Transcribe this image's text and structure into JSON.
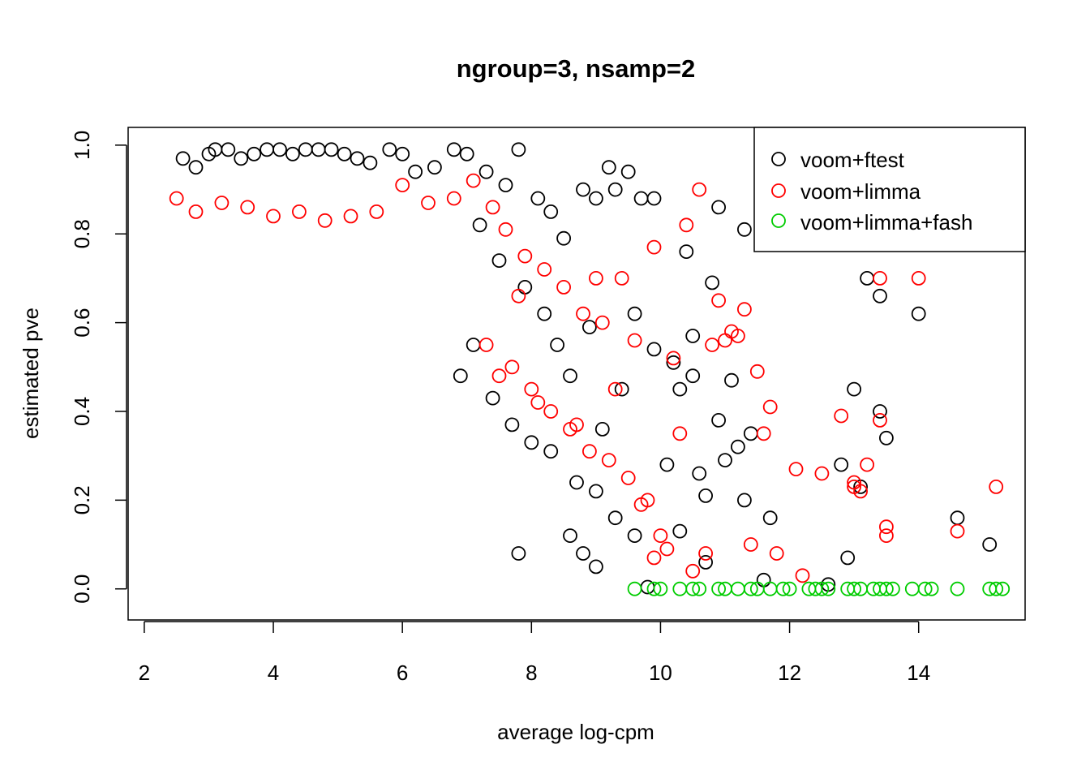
{
  "chart_data": {
    "type": "scatter",
    "title": "ngroup=3, nsamp=2",
    "xlabel": "average log-cpm",
    "ylabel": "estimated pve",
    "xlim": [
      1.75,
      15.65
    ],
    "ylim": [
      -0.07,
      1.04
    ],
    "xticks": [
      2,
      4,
      6,
      8,
      10,
      12,
      14
    ],
    "yticks": [
      0.0,
      0.2,
      0.4,
      0.6,
      0.8,
      1.0
    ],
    "xtick_labels": [
      "2",
      "4",
      "6",
      "8",
      "10",
      "12",
      "14"
    ],
    "ytick_labels": [
      "0.0",
      "0.2",
      "0.4",
      "0.6",
      "0.8",
      "1.0"
    ],
    "grid": false,
    "legend": "top-right",
    "marker": "open-circle",
    "series": [
      {
        "name": "voom+ftest",
        "color": "#000000",
        "x": [
          2.6,
          2.8,
          3.0,
          3.1,
          3.3,
          3.5,
          3.7,
          3.9,
          4.1,
          4.3,
          4.5,
          4.7,
          4.9,
          5.1,
          5.3,
          5.5,
          5.8,
          6.0,
          6.2,
          6.5,
          6.8,
          7.0,
          7.3,
          7.6,
          7.8,
          8.1,
          8.3,
          8.5,
          8.8,
          9.0,
          9.2,
          9.3,
          9.5,
          9.7,
          9.9,
          10.2,
          10.4,
          10.5,
          10.6,
          10.9,
          11.1,
          11.3,
          7.2,
          7.5,
          7.9,
          8.2,
          8.4,
          8.6,
          8.9,
          9.1,
          9.4,
          9.6,
          9.9,
          10.1,
          10.3,
          10.5,
          10.7,
          10.9,
          11.0,
          11.2,
          11.4,
          11.7,
          12.8,
          13.0,
          13.2,
          13.4,
          13.5,
          14.0,
          14.6,
          15.1,
          7.4,
          7.7,
          8.0,
          8.3,
          8.7,
          9.0,
          9.3,
          9.6,
          10.3,
          10.7,
          11.3,
          11.6,
          12.6,
          12.9,
          13.1,
          13.4,
          9.0,
          8.6,
          7.8,
          10.8,
          7.1,
          6.9,
          8.8,
          9.8
        ],
        "y": [
          0.97,
          0.95,
          0.98,
          0.99,
          0.99,
          0.97,
          0.98,
          0.99,
          0.99,
          0.98,
          0.99,
          0.99,
          0.99,
          0.98,
          0.97,
          0.96,
          0.99,
          0.98,
          0.94,
          0.95,
          0.99,
          0.98,
          0.94,
          0.91,
          0.99,
          0.88,
          0.85,
          0.79,
          0.9,
          0.88,
          0.95,
          0.9,
          0.94,
          0.88,
          0.88,
          0.51,
          0.76,
          0.57,
          0.26,
          0.86,
          0.47,
          0.81,
          0.82,
          0.74,
          0.68,
          0.62,
          0.55,
          0.48,
          0.59,
          0.36,
          0.45,
          0.62,
          0.54,
          0.28,
          0.13,
          0.48,
          0.06,
          0.38,
          0.29,
          0.32,
          0.35,
          0.16,
          0.28,
          0.45,
          0.7,
          0.66,
          0.34,
          0.62,
          0.16,
          0.1,
          0.43,
          0.37,
          0.33,
          0.31,
          0.24,
          0.22,
          0.16,
          0.12,
          0.45,
          0.21,
          0.2,
          0.02,
          0.01,
          0.07,
          0.23,
          0.4,
          0.05,
          0.12,
          0.08,
          0.69,
          0.55,
          0.48,
          0.08,
          0.004
        ]
      },
      {
        "name": "voom+limma",
        "color": "#ff0000",
        "x": [
          2.5,
          2.8,
          3.2,
          3.6,
          4.0,
          4.4,
          4.8,
          5.2,
          5.6,
          6.0,
          6.4,
          6.8,
          7.1,
          7.4,
          7.6,
          7.9,
          8.2,
          8.5,
          8.8,
          9.1,
          9.4,
          9.6,
          9.9,
          10.2,
          10.4,
          10.6,
          10.9,
          11.1,
          11.3,
          11.5,
          11.7,
          11.8,
          12.1,
          12.5,
          12.8,
          13.0,
          13.2,
          13.4,
          13.5,
          14.0,
          14.6,
          15.2,
          7.3,
          7.7,
          8.0,
          8.3,
          8.6,
          8.9,
          9.2,
          9.5,
          9.8,
          10.0,
          10.3,
          10.5,
          10.8,
          11.0,
          11.2,
          11.6,
          12.2,
          13.1,
          13.4,
          9.7,
          9.9,
          7.5,
          8.1,
          8.7,
          9.3,
          10.1,
          10.7,
          11.4,
          13.0,
          13.5,
          9.0,
          7.8
        ],
        "y": [
          0.88,
          0.85,
          0.87,
          0.86,
          0.84,
          0.85,
          0.83,
          0.84,
          0.85,
          0.91,
          0.87,
          0.88,
          0.92,
          0.86,
          0.81,
          0.75,
          0.72,
          0.68,
          0.62,
          0.6,
          0.7,
          0.56,
          0.77,
          0.52,
          0.82,
          0.9,
          0.65,
          0.58,
          0.63,
          0.49,
          0.41,
          0.08,
          0.27,
          0.26,
          0.39,
          0.24,
          0.28,
          0.7,
          0.14,
          0.7,
          0.13,
          0.23,
          0.55,
          0.5,
          0.45,
          0.4,
          0.36,
          0.31,
          0.29,
          0.25,
          0.2,
          0.12,
          0.35,
          0.04,
          0.55,
          0.56,
          0.57,
          0.35,
          0.03,
          0.22,
          0.38,
          0.19,
          0.07,
          0.48,
          0.42,
          0.37,
          0.45,
          0.09,
          0.08,
          0.1,
          0.23,
          0.12,
          0.7,
          0.66
        ]
      },
      {
        "name": "voom+limma+fash",
        "color": "#00cc00",
        "x": [
          9.9,
          10.3,
          10.6,
          10.9,
          11.2,
          11.5,
          11.7,
          12.0,
          12.3,
          12.5,
          12.6,
          12.9,
          13.1,
          13.3,
          13.4,
          13.5,
          13.9,
          14.1,
          14.6,
          15.1,
          15.2,
          9.6,
          10.0,
          10.5,
          11.0,
          11.4,
          11.9,
          12.4,
          13.0,
          13.6,
          14.2,
          15.3
        ],
        "y": [
          0,
          0,
          0,
          0,
          0,
          0,
          0,
          0,
          0,
          0,
          0,
          0,
          0,
          0,
          0,
          0,
          0,
          0,
          0,
          0,
          0,
          0,
          0,
          0,
          0,
          0,
          0,
          0,
          0,
          0,
          0,
          0
        ]
      }
    ]
  }
}
